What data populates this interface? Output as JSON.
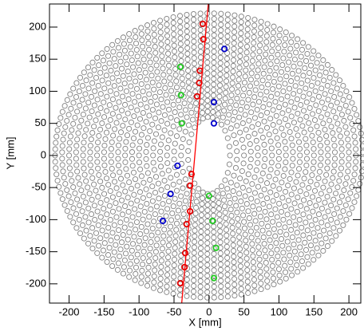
{
  "chart_data": {
    "type": "scatter",
    "xlabel": "X [mm]",
    "ylabel": "Y [mm]",
    "xlim": [
      -228,
      217
    ],
    "ylim": [
      -230,
      236
    ],
    "xticks": [
      -200,
      -150,
      -100,
      -50,
      0,
      50,
      100,
      150,
      200
    ],
    "yticks": [
      -200,
      -150,
      -100,
      -50,
      0,
      50,
      100,
      150,
      200
    ],
    "rings": {
      "color": "#808080",
      "rx": [
        30,
        40,
        50,
        60,
        70,
        80,
        90,
        100,
        110,
        120,
        130,
        140,
        150,
        160,
        170,
        180,
        190,
        200,
        210,
        220
      ],
      "ry": [
        60,
        68.5,
        77,
        85.5,
        94,
        102.5,
        111,
        119.5,
        128,
        136.5,
        145,
        153.5,
        162,
        170.5,
        179,
        187.5,
        196,
        204.5,
        213,
        221.5
      ],
      "counts": [
        27,
        33,
        39,
        45,
        51,
        57,
        63,
        69,
        75,
        81,
        87,
        93,
        99,
        105,
        111,
        117,
        123,
        129,
        135,
        141
      ]
    },
    "series": [
      {
        "color": "#e00000",
        "x": [
          -9,
          -8,
          -13,
          -14,
          -17,
          -25,
          -27,
          -27,
          -32,
          -34,
          -35,
          -41
        ],
        "y": [
          205,
          181,
          132,
          113,
          92,
          -29,
          -47,
          -87,
          -107,
          -152,
          -174,
          -199
        ]
      },
      {
        "color": "#0000cc",
        "x": [
          22,
          7,
          -45,
          -55,
          -66,
          7
        ],
        "y": [
          166,
          83,
          -16,
          -60,
          -102,
          50
        ]
      },
      {
        "color": "#22cc22",
        "x": [
          -41,
          -40,
          -39,
          0,
          5,
          10,
          7
        ],
        "y": [
          138,
          94,
          50,
          -63,
          -102,
          -144,
          -191
        ]
      }
    ],
    "track": {
      "color": "#ff0000",
      "x": [
        -1,
        -39
      ],
      "y": [
        236,
        -230
      ]
    }
  }
}
